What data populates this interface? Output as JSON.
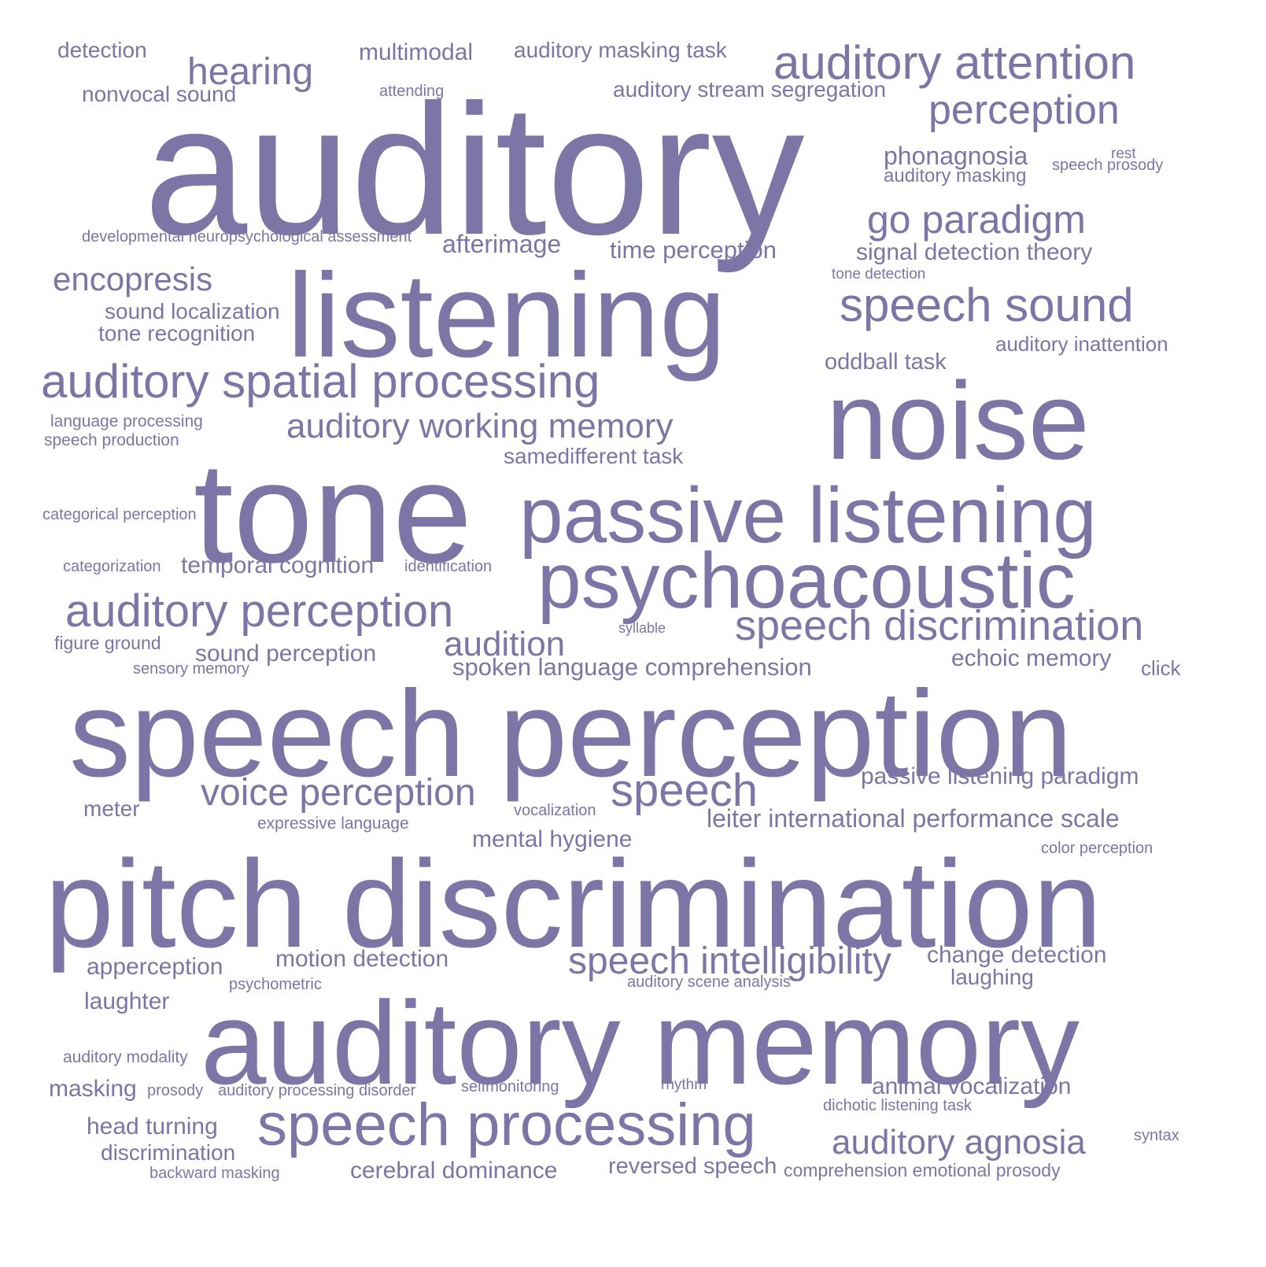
{
  "style": {
    "word_color": "#7b76a6",
    "background": "#ffffff"
  },
  "words": [
    "auditory",
    "listening",
    "noise",
    "tone",
    "passive listening",
    "psychoacoustic",
    "speech perception",
    "pitch discrimination",
    "auditory memory",
    "auditory attention",
    "perception",
    "hearing",
    "detection",
    "nonvocal sound",
    "multimodal",
    "attending",
    "auditory masking task",
    "auditory stream segregation",
    "phonagnosia",
    "auditory masking",
    "rest",
    "speech prosody",
    "go paradigm",
    "signal detection theory",
    "tone detection",
    "developmental neuropsychological assessment",
    "afterimage",
    "time perception",
    "encopresis",
    "sound localization",
    "tone recognition",
    "speech sound",
    "auditory inattention",
    "oddball task",
    "auditory spatial processing",
    "auditory working memory",
    "language processing",
    "speech production",
    "samedifferent task",
    "categorical perception",
    "categorization",
    "temporal cognition",
    "identification",
    "auditory perception",
    "syllable",
    "speech discrimination",
    "figure ground",
    "audition",
    "sound perception",
    "sensory memory",
    "spoken language comprehension",
    "echoic memory",
    "click",
    "passive listening paradigm",
    "voice perception",
    "speech",
    "meter",
    "vocalization",
    "expressive language",
    "leiter international performance scale",
    "mental hygiene",
    "color perception",
    "apperception",
    "motion detection",
    "speech intelligibility",
    "change detection",
    "laughing",
    "psychometric",
    "auditory scene analysis",
    "laughter",
    "auditory modality",
    "masking",
    "prosody",
    "auditory processing disorder",
    "selfmonitoring",
    "rhythm",
    "animal vocalization",
    "dichotic listening task",
    "head turning",
    "speech processing",
    "auditory agnosia",
    "syntax",
    "discrimination",
    "backward masking",
    "cerebral dominance",
    "reversed speech",
    "comprehension emotional prosody"
  ]
}
